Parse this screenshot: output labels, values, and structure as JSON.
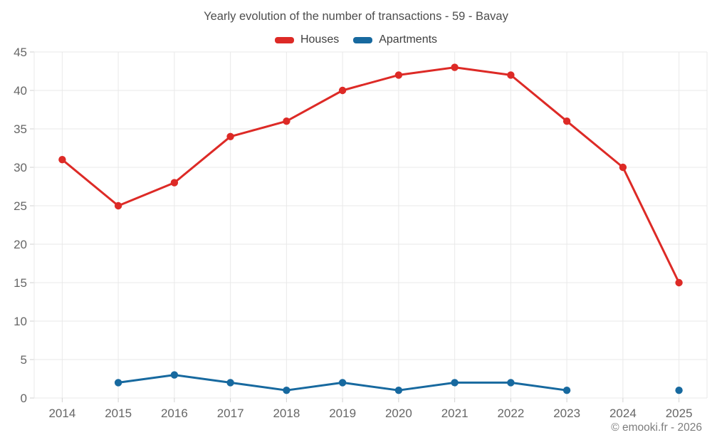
{
  "title": "Yearly evolution of the number of transactions - 59 - Bavay",
  "legend": [
    {
      "label": "Houses",
      "color": "#dd2a26"
    },
    {
      "label": "Apartments",
      "color": "#17699f"
    }
  ],
  "footer": {
    "credit": "© emooki.fr - 2026"
  },
  "colors": {
    "houses": "#dd2a26",
    "apartments": "#17699f",
    "grid": "#e9e9e9",
    "tick": "#d2d2d2",
    "axis_text": "#666666",
    "title_text": "#4e4e4e"
  },
  "chart_data": {
    "type": "line",
    "title": "Yearly evolution of the number of transactions - 59 - Bavay",
    "categories": [
      "2014",
      "2015",
      "2016",
      "2017",
      "2018",
      "2019",
      "2020",
      "2021",
      "2022",
      "2023",
      "2024",
      "2025"
    ],
    "series": [
      {
        "name": "Houses",
        "color": "#dd2a26",
        "values": [
          31,
          25,
          28,
          34,
          36,
          40,
          42,
          43,
          42,
          36,
          30,
          15
        ]
      },
      {
        "name": "Apartments",
        "color": "#17699f",
        "values": [
          null,
          2,
          3,
          2,
          1,
          2,
          1,
          2,
          2,
          1,
          null,
          1
        ]
      }
    ],
    "xlabel": "",
    "ylabel": "",
    "ylim": [
      0,
      45
    ],
    "yticks": [
      0,
      5,
      10,
      15,
      20,
      25,
      30,
      35,
      40,
      45
    ],
    "grid": true,
    "legend_position": "top"
  }
}
